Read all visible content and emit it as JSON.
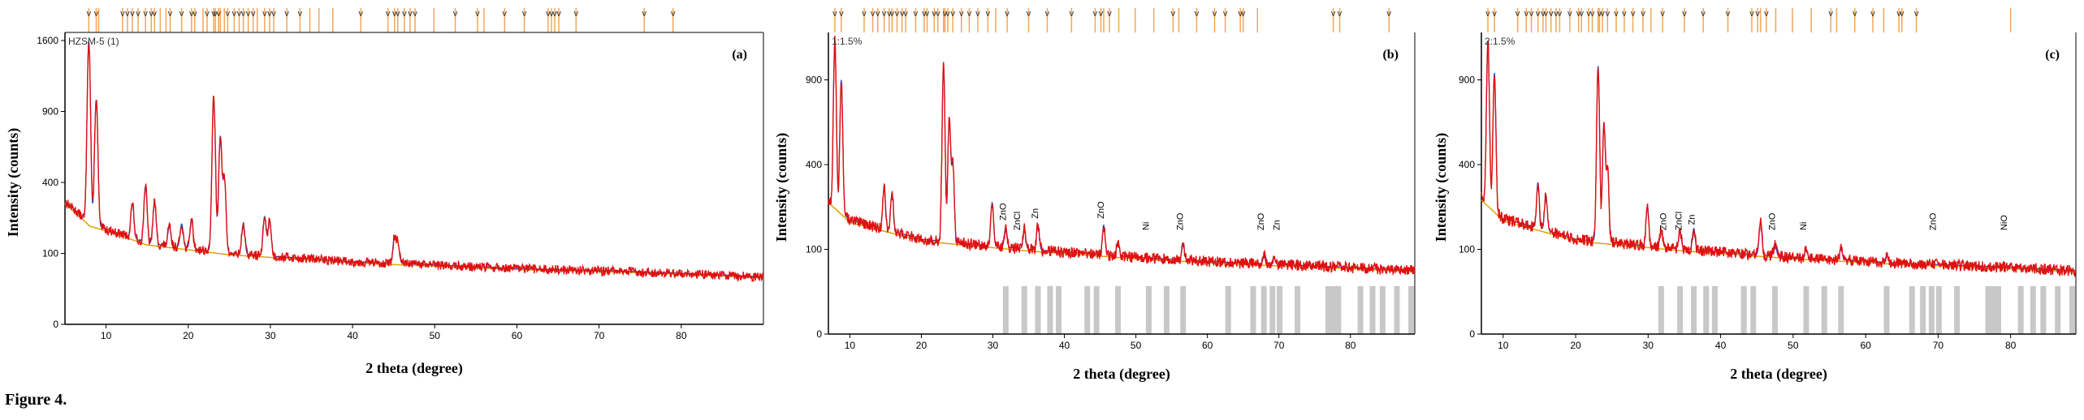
{
  "figure": {
    "caption": "Figure 4."
  },
  "chart_data": [
    {
      "type": "line",
      "panel": "(a)",
      "inset_label": "HZSM-5 (1)",
      "xlabel": "2 theta (degree)",
      "ylabel": "Intensity (counts)",
      "xlim": [
        5,
        90
      ],
      "y_scale": "square-root",
      "ylim": [
        0,
        1600
      ],
      "xticks": [
        10,
        20,
        30,
        40,
        50,
        60,
        70,
        80
      ],
      "yticks": [
        0,
        100,
        400,
        900,
        1600
      ],
      "peaks": [
        {
          "x": 7.9,
          "y": 1600
        },
        {
          "x": 8.8,
          "y": 1000
        },
        {
          "x": 13.2,
          "y": 290
        },
        {
          "x": 14.8,
          "y": 380
        },
        {
          "x": 15.9,
          "y": 300
        },
        {
          "x": 17.7,
          "y": 190
        },
        {
          "x": 19.2,
          "y": 200
        },
        {
          "x": 20.4,
          "y": 220
        },
        {
          "x": 23.1,
          "y": 1020
        },
        {
          "x": 23.9,
          "y": 700
        },
        {
          "x": 24.4,
          "y": 420
        },
        {
          "x": 26.7,
          "y": 200
        },
        {
          "x": 29.3,
          "y": 230
        },
        {
          "x": 29.9,
          "y": 220
        },
        {
          "x": 45.1,
          "y": 150
        },
        {
          "x": 45.5,
          "y": 130
        }
      ],
      "baseline": [
        {
          "x": 5,
          "y": 300
        },
        {
          "x": 8,
          "y": 200
        },
        {
          "x": 15,
          "y": 130
        },
        {
          "x": 25,
          "y": 100
        },
        {
          "x": 40,
          "y": 78
        },
        {
          "x": 60,
          "y": 62
        },
        {
          "x": 75,
          "y": 55
        },
        {
          "x": 90,
          "y": 45
        }
      ],
      "reference_lines_top": [
        7.9,
        8.8,
        9.1,
        12.0,
        12.6,
        13.2,
        13.9,
        14.8,
        15.5,
        15.9,
        16.6,
        17.3,
        17.8,
        19.2,
        20.4,
        20.8,
        21.8,
        22.3,
        23.1,
        23.3,
        23.7,
        23.9,
        24.4,
        24.8,
        25.6,
        26.2,
        26.7,
        27.3,
        27.9,
        28.4,
        29.3,
        29.9,
        30.4,
        32.0,
        33.6,
        34.8,
        35.9,
        37.6,
        41.0,
        44.3,
        45.1,
        45.5,
        46.3,
        47.0,
        47.6,
        49.9,
        52.5,
        55.2,
        56.0,
        58.5,
        60.9,
        63.8,
        64.2,
        64.6,
        65.1,
        67.2,
        75.5,
        79.0
      ],
      "reference_marks_top": [
        7.9,
        8.8,
        12.0,
        12.6,
        13.2,
        13.9,
        14.8,
        15.5,
        15.9,
        17.8,
        19.2,
        20.4,
        20.8,
        22.3,
        23.1,
        23.3,
        23.7,
        24.8,
        25.6,
        26.2,
        26.7,
        27.3,
        27.9,
        29.3,
        29.9,
        30.4,
        32.0,
        33.6,
        41.0,
        44.3,
        45.1,
        45.5,
        46.3,
        47.0,
        47.6,
        52.5,
        55.2,
        58.5,
        60.9,
        63.8,
        64.2,
        64.6,
        65.1,
        67.2,
        75.5,
        79.0
      ]
    },
    {
      "type": "line",
      "panel": "(b)",
      "inset_label": "1:1.5%",
      "xlabel": "2 theta (degree)",
      "ylabel": "Intensity (counts)",
      "xlim": [
        7,
        89
      ],
      "y_scale": "square-root",
      "ylim": [
        0,
        1200
      ],
      "xticks": [
        10,
        20,
        30,
        40,
        50,
        60,
        70,
        80
      ],
      "yticks": [
        0,
        100,
        400,
        900
      ],
      "peaks": [
        {
          "x": 7.9,
          "y": 1200
        },
        {
          "x": 8.8,
          "y": 900
        },
        {
          "x": 14.8,
          "y": 300
        },
        {
          "x": 15.9,
          "y": 280
        },
        {
          "x": 23.1,
          "y": 1000
        },
        {
          "x": 23.9,
          "y": 650
        },
        {
          "x": 24.4,
          "y": 400
        },
        {
          "x": 29.9,
          "y": 240
        },
        {
          "x": 31.8,
          "y": 160
        },
        {
          "x": 34.4,
          "y": 155
        },
        {
          "x": 36.3,
          "y": 165
        },
        {
          "x": 45.5,
          "y": 165
        },
        {
          "x": 47.5,
          "y": 120
        },
        {
          "x": 56.6,
          "y": 110
        },
        {
          "x": 68.0,
          "y": 90
        },
        {
          "x": 69.3,
          "y": 82
        }
      ],
      "baseline": [
        {
          "x": 7,
          "y": 250
        },
        {
          "x": 10,
          "y": 180
        },
        {
          "x": 20,
          "y": 125
        },
        {
          "x": 35,
          "y": 100
        },
        {
          "x": 50,
          "y": 82
        },
        {
          "x": 65,
          "y": 70
        },
        {
          "x": 80,
          "y": 62
        },
        {
          "x": 89,
          "y": 56
        }
      ],
      "annotations": [
        {
          "text": "ZnO",
          "x": 31.8
        },
        {
          "text": "ZnCl",
          "x": 33.8
        },
        {
          "text": "Zn",
          "x": 36.3
        },
        {
          "text": "ZnO",
          "x": 45.5
        },
        {
          "text": "Ni",
          "x": 51.8
        },
        {
          "text": "ZnO",
          "x": 56.6
        },
        {
          "text": "ZnO",
          "x": 67.9
        },
        {
          "text": "Zn",
          "x": 70.1
        }
      ],
      "reference_bars": [
        31.8,
        34.4,
        36.3,
        38.0,
        39.2,
        43.2,
        44.5,
        47.5,
        51.8,
        54.3,
        56.6,
        62.9,
        66.4,
        67.9,
        69.1,
        70.1,
        72.6,
        76.9,
        77.6,
        78.3,
        81.4,
        83.1,
        84.5,
        86.5,
        88.5
      ],
      "reference_lines_top": [
        7.9,
        8.8,
        12.0,
        13.2,
        13.9,
        14.8,
        15.5,
        15.9,
        16.6,
        17.3,
        17.8,
        19.2,
        20.4,
        20.8,
        21.8,
        22.3,
        23.1,
        23.3,
        23.7,
        24.4,
        25.6,
        26.7,
        27.9,
        29.3,
        30.4,
        32.0,
        35.0,
        37.6,
        41.0,
        44.3,
        45.1,
        45.5,
        46.3,
        47.6,
        49.9,
        52.5,
        55.2,
        56.0,
        58.5,
        61.0,
        62.5,
        64.6,
        65.0,
        67.0,
        77.6,
        78.5,
        85.4
      ],
      "reference_marks_top": [
        7.9,
        8.8,
        12.0,
        13.2,
        13.9,
        14.8,
        15.5,
        15.9,
        16.6,
        17.3,
        17.8,
        19.2,
        20.4,
        20.8,
        21.8,
        22.3,
        23.3,
        23.7,
        24.4,
        25.6,
        26.7,
        27.9,
        29.3,
        32.0,
        35.0,
        37.6,
        41.0,
        44.3,
        45.1,
        46.3,
        55.2,
        58.5,
        61.0,
        62.5,
        64.6,
        65.0,
        77.6,
        78.5,
        85.4
      ]
    },
    {
      "type": "line",
      "panel": "(c)",
      "inset_label": "2:1.5%",
      "xlabel": "2 theta (degree)",
      "ylabel": "Intensity (counts)",
      "xlim": [
        7,
        89
      ],
      "y_scale": "square-root",
      "ylim": [
        0,
        1200
      ],
      "xticks": [
        10,
        20,
        30,
        40,
        50,
        60,
        70,
        80
      ],
      "yticks": [
        0,
        100,
        400,
        900
      ],
      "peaks": [
        {
          "x": 7.9,
          "y": 1200
        },
        {
          "x": 8.8,
          "y": 950
        },
        {
          "x": 14.8,
          "y": 320
        },
        {
          "x": 15.9,
          "y": 270
        },
        {
          "x": 23.1,
          "y": 1000
        },
        {
          "x": 23.9,
          "y": 620
        },
        {
          "x": 24.4,
          "y": 380
        },
        {
          "x": 29.9,
          "y": 230
        },
        {
          "x": 31.8,
          "y": 150
        },
        {
          "x": 34.4,
          "y": 150
        },
        {
          "x": 36.3,
          "y": 155
        },
        {
          "x": 45.5,
          "y": 175
        },
        {
          "x": 47.5,
          "y": 115
        },
        {
          "x": 51.8,
          "y": 100
        },
        {
          "x": 56.6,
          "y": 100
        },
        {
          "x": 62.9,
          "y": 85
        }
      ],
      "baseline": [
        {
          "x": 7,
          "y": 260
        },
        {
          "x": 10,
          "y": 185
        },
        {
          "x": 20,
          "y": 125
        },
        {
          "x": 35,
          "y": 100
        },
        {
          "x": 50,
          "y": 82
        },
        {
          "x": 65,
          "y": 70
        },
        {
          "x": 80,
          "y": 62
        },
        {
          "x": 89,
          "y": 56
        }
      ],
      "annotations": [
        {
          "text": "ZnO",
          "x": 32.5
        },
        {
          "text": "ZnCl",
          "x": 34.6
        },
        {
          "text": "Zn",
          "x": 36.4
        },
        {
          "text": "ZnO",
          "x": 47.5
        },
        {
          "text": "Ni",
          "x": 51.8
        },
        {
          "text": "ZnO",
          "x": 69.7
        },
        {
          "text": "NiO",
          "x": 79.5
        }
      ],
      "reference_bars": [
        31.8,
        34.4,
        36.3,
        38.0,
        39.2,
        43.2,
        44.5,
        47.5,
        51.8,
        54.3,
        56.6,
        62.9,
        66.4,
        67.9,
        69.1,
        70.1,
        72.6,
        76.9,
        77.6,
        78.3,
        81.4,
        83.1,
        84.5,
        86.5,
        88.5
      ],
      "reference_lines_top": [
        7.9,
        8.8,
        12.0,
        13.2,
        13.9,
        14.8,
        15.5,
        15.9,
        16.6,
        17.3,
        17.8,
        19.2,
        20.4,
        20.8,
        21.8,
        22.3,
        23.1,
        23.3,
        23.7,
        24.4,
        25.6,
        26.7,
        27.9,
        29.3,
        30.4,
        32.0,
        35.0,
        37.6,
        41.0,
        44.3,
        45.1,
        45.5,
        46.3,
        47.6,
        49.9,
        52.5,
        55.2,
        56.0,
        58.5,
        61.0,
        62.5,
        64.6,
        65.0,
        67.0,
        80.0
      ],
      "reference_marks_top": [
        7.9,
        8.8,
        12.0,
        13.2,
        13.9,
        14.8,
        15.5,
        15.9,
        16.6,
        17.3,
        17.8,
        19.2,
        20.4,
        20.8,
        21.8,
        22.3,
        23.3,
        23.7,
        24.4,
        25.6,
        26.7,
        27.9,
        29.3,
        32.0,
        35.0,
        37.6,
        41.0,
        44.3,
        45.1,
        46.3,
        55.2,
        58.5,
        61.0,
        64.6,
        65.0,
        67.0
      ]
    }
  ]
}
